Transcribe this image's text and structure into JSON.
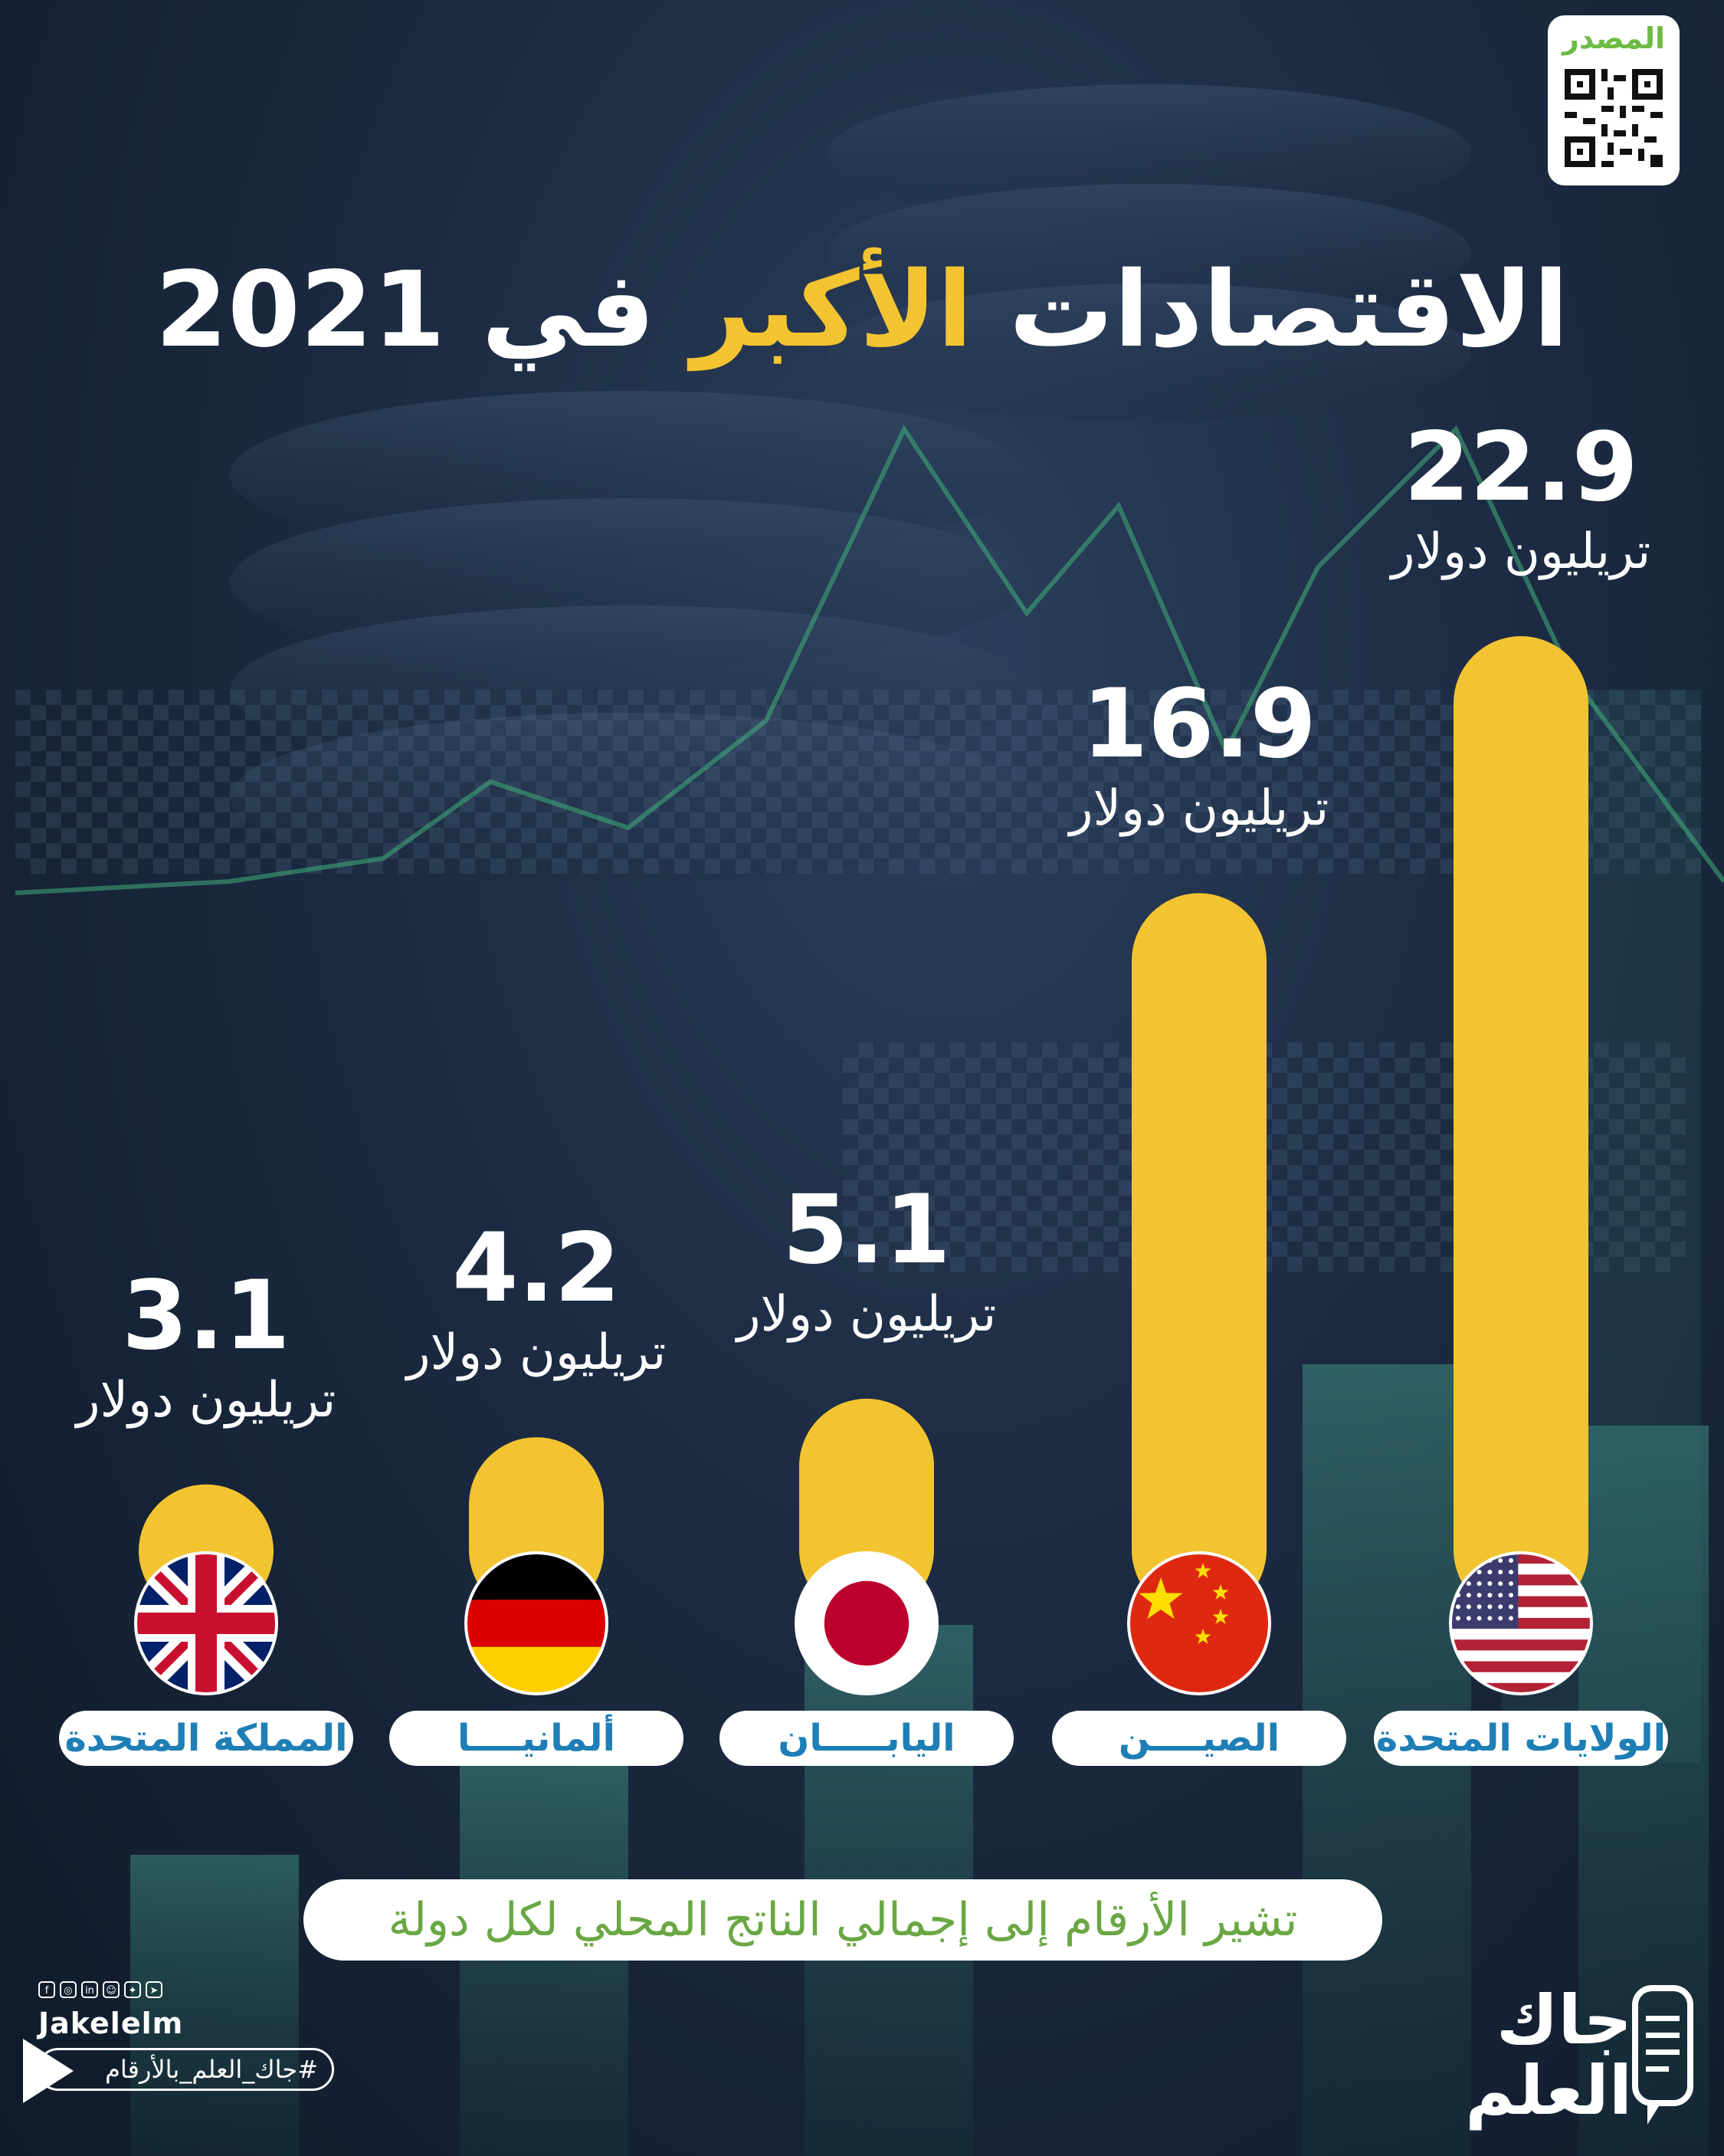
{
  "title": {
    "part1": "الاقتصادات",
    "part2": "الأكبر",
    "part3": "في 2021"
  },
  "source": {
    "label": "المصدر"
  },
  "chart_data": {
    "type": "bar",
    "categories": [
      "الولايات المتحدة",
      "الصيــــن",
      "اليابـــــان",
      "ألمانيــــا",
      "المملكة المتحدة"
    ],
    "values": [
      22.9,
      16.9,
      5.1,
      4.2,
      3.1
    ],
    "value_labels": [
      "22.9",
      "16.9",
      "5.1",
      "4.2",
      "3.1"
    ],
    "unit": "تريليون دولار",
    "flags": [
      "us-flag-icon",
      "china-flag-icon",
      "japan-flag-icon",
      "germany-flag-icon",
      "uk-flag-icon"
    ],
    "bar_color": "#f3c431",
    "ylim": [
      0,
      22.9
    ],
    "order": "right-to-left"
  },
  "note": "تشير الأرقام إلى إجمالي الناتج المحلي لكل دولة",
  "footer": {
    "handle": "Jakelelm",
    "hashtag": "#جاك_العلم_بالأرقام",
    "brand_line1": "جاك",
    "brand_line2": "العلم",
    "social_icons": [
      "facebook-icon",
      "instagram-icon",
      "linkedin-icon",
      "snapchat-icon",
      "twitter-icon",
      "telegram-icon"
    ]
  },
  "colors": {
    "accent": "#f3c431",
    "label_blue": "#1e7fb6",
    "note_green": "#6aa744",
    "source_green": "#6dbb44"
  }
}
